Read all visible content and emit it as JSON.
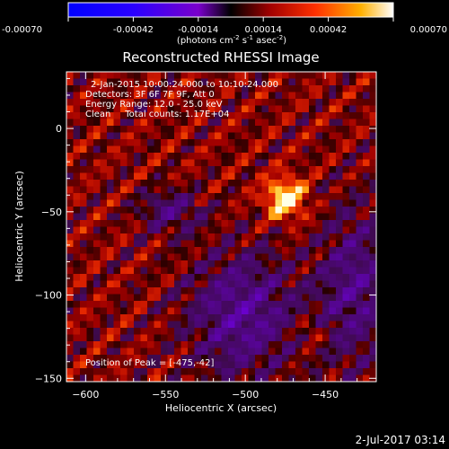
{
  "chart_data": {
    "type": "heatmap",
    "title": "Reconstructed RHESSI Image",
    "xlabel": "Heliocentric X (arcsec)",
    "ylabel": "Heliocentric Y (arcsec)",
    "xlim": [
      -612,
      -418
    ],
    "ylim": [
      -152,
      34
    ],
    "x_ticks": [
      -600,
      -550,
      -500,
      -450
    ],
    "x_tick_labels": [
      "−600",
      "−550",
      "−500",
      "−450"
    ],
    "y_ticks": [
      0,
      -50,
      -100,
      -150
    ],
    "y_tick_labels": [
      "0",
      "−50",
      "−100",
      "−150"
    ],
    "annotations": [
      "2-Jan-2015 10:00:24.000 to 10:10:24.000",
      "Detectors: 3F 6F 7F 9F, Att 0",
      "Energy Range: 12.0 - 25.0 keV",
      "Clean     Total counts: 1.17E+04"
    ],
    "peak_label": "Position of Peak = [-475,-42]",
    "peak": {
      "x": -475,
      "y": -42
    },
    "colorbar": {
      "range": [
        -0.0007,
        0.0007
      ],
      "ticks": [
        -0.0007,
        -0.00042,
        -0.00014,
        0.00014,
        0.00042,
        0.0007
      ],
      "tick_labels": [
        "-0.00070",
        "-0.00042",
        "-0.00014",
        "0.00014",
        "0.00042",
        "0.00070"
      ],
      "units_line1": "(photons cm",
      "units_sup1": "-2",
      "units_mid1": " s",
      "units_sup2": "-1",
      "units_mid2": " asec",
      "units_sup3": "-2",
      "units_end": ")"
    },
    "grid": false
  },
  "footer": {
    "timestamp": "2-Jul-2017 03:14"
  }
}
